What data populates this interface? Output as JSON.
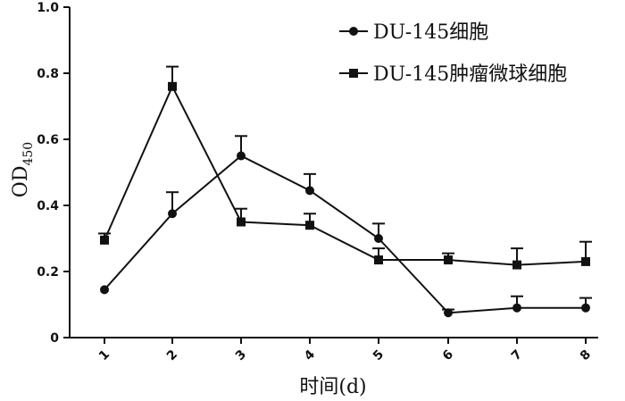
{
  "chart_data": {
    "type": "line",
    "categories": [
      "1",
      "2",
      "3",
      "4",
      "5",
      "6",
      "7",
      "8"
    ],
    "xlabel": "时间(d)",
    "ylabel": {
      "main": "OD",
      "subscript": "450"
    },
    "ylim": [
      0,
      1.0
    ],
    "yticks": [
      "0",
      "0.2",
      "0.4",
      "0.6",
      "0.8",
      "1.0"
    ],
    "legend_position": "top-right",
    "series": [
      {
        "name": "DU-145细胞",
        "marker": "circle",
        "color": "#111111",
        "values": [
          0.145,
          0.375,
          0.55,
          0.445,
          0.3,
          0.075,
          0.09,
          0.09
        ],
        "errors": [
          0.0,
          0.065,
          0.06,
          0.05,
          0.045,
          0.01,
          0.035,
          0.03
        ]
      },
      {
        "name": "DU-145肿瘤微球细胞",
        "marker": "square",
        "color": "#111111",
        "values": [
          0.295,
          0.76,
          0.35,
          0.34,
          0.235,
          0.235,
          0.22,
          0.23
        ],
        "errors": [
          0.02,
          0.06,
          0.04,
          0.035,
          0.035,
          0.02,
          0.05,
          0.06
        ]
      }
    ]
  }
}
